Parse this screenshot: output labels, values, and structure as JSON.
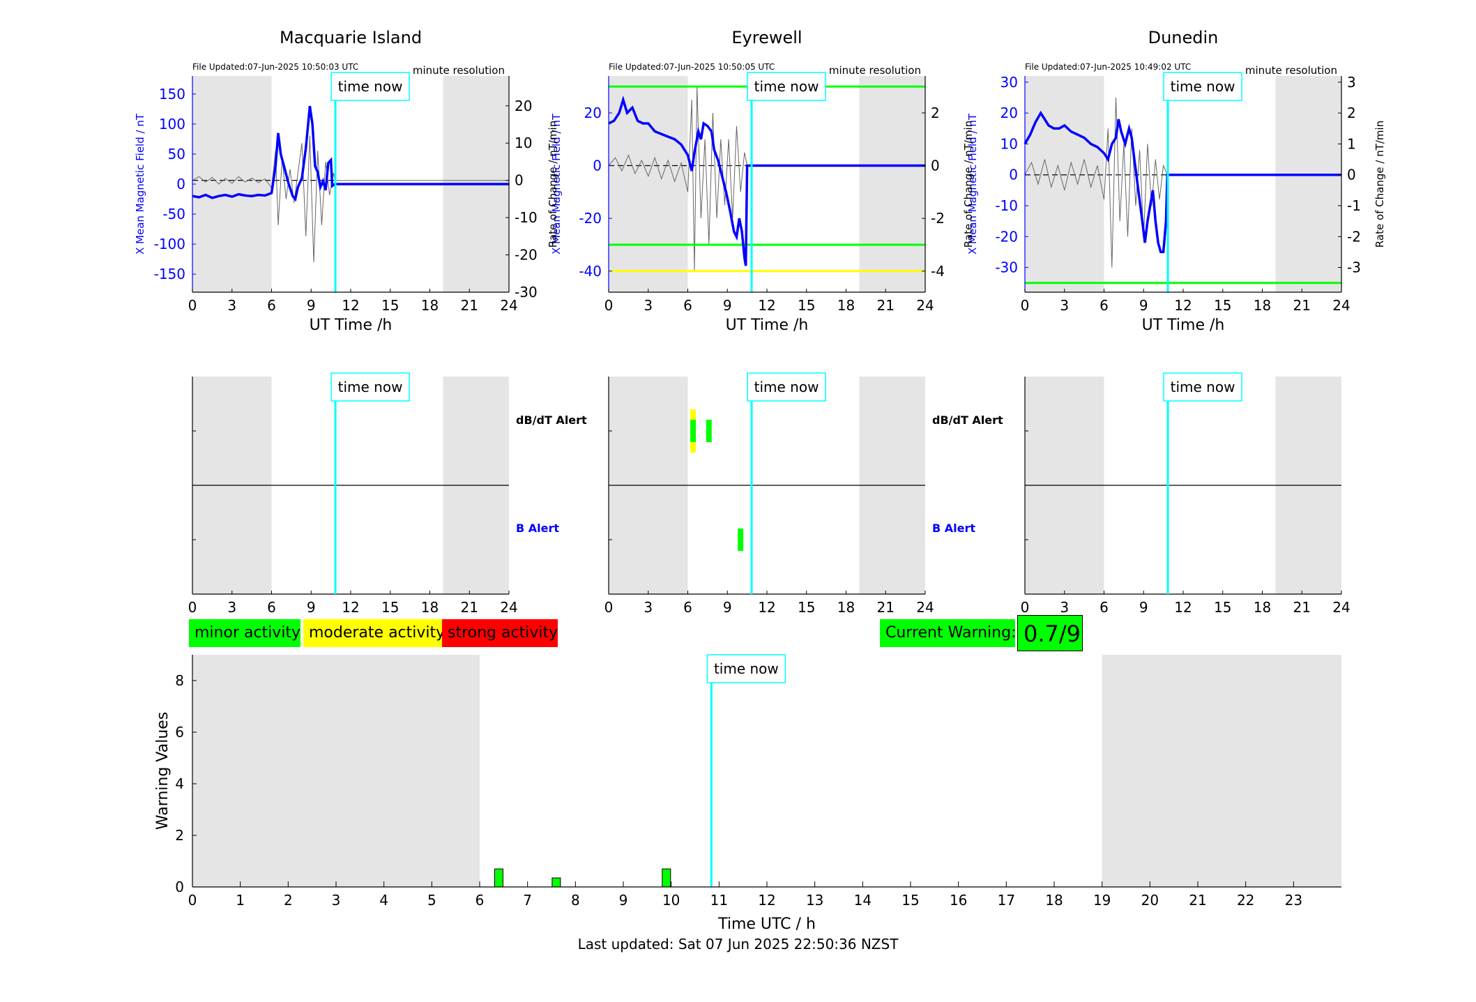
{
  "stations": [
    {
      "title": "Macquarie Island",
      "file_updated": "File Updated:07-Jun-2025 10:50:03 UTC",
      "resolution": "minute resolution",
      "ylabel_left": "X Mean Magnetic Field / nT",
      "ylabel_right": "",
      "left_ylim": [
        -180,
        180
      ],
      "left_ticks": [
        -150,
        -100,
        -50,
        0,
        50,
        100,
        150
      ],
      "right_ylim": [
        -30,
        28
      ],
      "right_ticks": [
        -30,
        -20,
        -10,
        0,
        10,
        20
      ],
      "thresholds": [],
      "thresh_colors": [],
      "x_series": [
        [
          0,
          -20
        ],
        [
          0.5,
          -22
        ],
        [
          1,
          -18
        ],
        [
          1.5,
          -23
        ],
        [
          2,
          -20
        ],
        [
          2.5,
          -18
        ],
        [
          3,
          -21
        ],
        [
          3.5,
          -17
        ],
        [
          4,
          -19
        ],
        [
          4.5,
          -20
        ],
        [
          5,
          -18
        ],
        [
          5.5,
          -19
        ],
        [
          6,
          -15
        ],
        [
          6.3,
          30
        ],
        [
          6.5,
          85
        ],
        [
          6.7,
          50
        ],
        [
          7,
          25
        ],
        [
          7.3,
          0
        ],
        [
          7.6,
          -20
        ],
        [
          7.8,
          -25
        ],
        [
          8,
          -5
        ],
        [
          8.3,
          10
        ],
        [
          8.6,
          60
        ],
        [
          8.9,
          130
        ],
        [
          9.1,
          100
        ],
        [
          9.3,
          30
        ],
        [
          9.5,
          20
        ],
        [
          9.7,
          -5
        ],
        [
          9.9,
          5
        ],
        [
          10.1,
          -10
        ],
        [
          10.3,
          35
        ],
        [
          10.5,
          40
        ],
        [
          10.6,
          -3
        ],
        [
          10.8,
          0
        ],
        [
          24,
          0
        ]
      ],
      "roc_series": [
        [
          0,
          0
        ],
        [
          0.5,
          1
        ],
        [
          1,
          -0.5
        ],
        [
          1.5,
          0.8
        ],
        [
          2,
          -1
        ],
        [
          2.5,
          0.5
        ],
        [
          3,
          -0.8
        ],
        [
          3.5,
          1
        ],
        [
          4,
          -0.5
        ],
        [
          4.5,
          0.6
        ],
        [
          5,
          -0.6
        ],
        [
          5.5,
          0.4
        ],
        [
          6,
          -2
        ],
        [
          6.3,
          8
        ],
        [
          6.5,
          -12
        ],
        [
          6.8,
          6
        ],
        [
          7.1,
          -5
        ],
        [
          7.4,
          3
        ],
        [
          7.7,
          -6
        ],
        [
          8,
          2
        ],
        [
          8.3,
          10
        ],
        [
          8.6,
          -15
        ],
        [
          8.9,
          12
        ],
        [
          9.2,
          -22
        ],
        [
          9.5,
          8
        ],
        [
          9.8,
          -12
        ],
        [
          10.1,
          5
        ],
        [
          10.4,
          -4
        ],
        [
          10.7,
          2
        ],
        [
          10.8,
          0
        ],
        [
          24,
          0
        ]
      ],
      "b_alerts": [],
      "dbdt_alerts": []
    },
    {
      "title": "Eyrewell",
      "file_updated": "File Updated:07-Jun-2025 10:50:05 UTC",
      "resolution": "minute resolution",
      "ylabel_left": "X Mean Magnetic Field / nT",
      "ylabel_right": "Rate of Change / nT/min",
      "left_ylim": [
        -48,
        34
      ],
      "left_ticks": [
        -40,
        -20,
        0,
        20
      ],
      "right_ylim": [
        -4.8,
        3.4
      ],
      "right_ticks": [
        -4,
        -2,
        0,
        2
      ],
      "thresholds": [
        30,
        -30,
        -40
      ],
      "thresh_colors": [
        "#00ff00",
        "#00ff00",
        "#ffff00"
      ],
      "x_series": [
        [
          0,
          16
        ],
        [
          0.4,
          17
        ],
        [
          0.8,
          20
        ],
        [
          1.1,
          25
        ],
        [
          1.4,
          20
        ],
        [
          1.8,
          22
        ],
        [
          2.2,
          17
        ],
        [
          2.6,
          16
        ],
        [
          3,
          16
        ],
        [
          3.5,
          13
        ],
        [
          4,
          12
        ],
        [
          4.5,
          11
        ],
        [
          5,
          10
        ],
        [
          5.5,
          8
        ],
        [
          6,
          4
        ],
        [
          6.3,
          -2
        ],
        [
          6.5,
          5
        ],
        [
          6.8,
          13
        ],
        [
          7,
          10
        ],
        [
          7.2,
          16
        ],
        [
          7.5,
          15
        ],
        [
          7.8,
          13
        ],
        [
          8,
          6
        ],
        [
          8.3,
          2
        ],
        [
          8.6,
          -4
        ],
        [
          8.9,
          -10
        ],
        [
          9.2,
          -17
        ],
        [
          9.5,
          -25
        ],
        [
          9.7,
          -27
        ],
        [
          9.9,
          -20
        ],
        [
          10.1,
          -25
        ],
        [
          10.3,
          -35
        ],
        [
          10.4,
          -38
        ],
        [
          10.5,
          0
        ],
        [
          24,
          0
        ]
      ],
      "roc_series": [
        [
          0,
          0
        ],
        [
          0.5,
          0.3
        ],
        [
          1,
          -0.2
        ],
        [
          1.5,
          0.4
        ],
        [
          2,
          -0.3
        ],
        [
          2.5,
          0.2
        ],
        [
          3,
          -0.4
        ],
        [
          3.5,
          0.3
        ],
        [
          4,
          -0.5
        ],
        [
          4.5,
          0.2
        ],
        [
          5,
          -0.6
        ],
        [
          5.5,
          0.1
        ],
        [
          6,
          -1
        ],
        [
          6.3,
          2.5
        ],
        [
          6.5,
          -4
        ],
        [
          6.7,
          3
        ],
        [
          7,
          -2
        ],
        [
          7.3,
          1
        ],
        [
          7.6,
          -3
        ],
        [
          7.9,
          2
        ],
        [
          8.2,
          -2
        ],
        [
          8.5,
          1
        ],
        [
          8.8,
          -1.5
        ],
        [
          9.1,
          1
        ],
        [
          9.4,
          -2
        ],
        [
          9.7,
          1.5
        ],
        [
          10,
          -1
        ],
        [
          10.3,
          0.5
        ],
        [
          10.5,
          0
        ],
        [
          24,
          0
        ]
      ],
      "b_alerts": [
        {
          "x": 10,
          "color": "#00ff00"
        }
      ],
      "dbdt_alerts": [
        {
          "x": 6.4,
          "color": "#ffff00",
          "tall": true
        },
        {
          "x": 6.4,
          "color": "#00ff00"
        },
        {
          "x": 7.6,
          "color": "#00ff00"
        }
      ]
    },
    {
      "title": "Dunedin",
      "file_updated": "File Updated:07-Jun-2025 10:49:02 UTC",
      "resolution": "minute resolution",
      "ylabel_left": "X Mean Magnetic Field / nT",
      "ylabel_right": "Rate of Change / nT/min",
      "left_ylim": [
        -38,
        32
      ],
      "left_ticks": [
        -30,
        -20,
        -10,
        0,
        10,
        20,
        30
      ],
      "right_ylim": [
        -3.8,
        3.2
      ],
      "right_ticks": [
        -3,
        -2,
        -1,
        0,
        1,
        2,
        3
      ],
      "thresholds": [
        -35
      ],
      "thresh_colors": [
        "#00ff00"
      ],
      "x_series": [
        [
          0,
          10
        ],
        [
          0.4,
          13
        ],
        [
          0.8,
          17
        ],
        [
          1.2,
          20
        ],
        [
          1.5,
          18
        ],
        [
          1.8,
          16
        ],
        [
          2.2,
          15
        ],
        [
          2.6,
          15
        ],
        [
          3,
          16
        ],
        [
          3.5,
          14
        ],
        [
          4,
          13
        ],
        [
          4.5,
          12
        ],
        [
          5,
          10
        ],
        [
          5.5,
          9
        ],
        [
          6,
          7
        ],
        [
          6.3,
          5
        ],
        [
          6.6,
          10
        ],
        [
          6.9,
          12
        ],
        [
          7.1,
          18
        ],
        [
          7.3,
          14
        ],
        [
          7.6,
          10
        ],
        [
          7.9,
          15
        ],
        [
          8.1,
          12
        ],
        [
          8.3,
          5
        ],
        [
          8.6,
          -5
        ],
        [
          8.9,
          -15
        ],
        [
          9.1,
          -22
        ],
        [
          9.3,
          -15
        ],
        [
          9.5,
          -10
        ],
        [
          9.7,
          -5
        ],
        [
          9.9,
          -15
        ],
        [
          10.1,
          -22
        ],
        [
          10.3,
          -25
        ],
        [
          10.5,
          -25
        ],
        [
          10.7,
          -15
        ],
        [
          10.8,
          0
        ],
        [
          24,
          0
        ]
      ],
      "roc_series": [
        [
          0,
          0
        ],
        [
          0.5,
          0.4
        ],
        [
          1,
          -0.3
        ],
        [
          1.5,
          0.5
        ],
        [
          2,
          -0.4
        ],
        [
          2.5,
          0.3
        ],
        [
          3,
          -0.5
        ],
        [
          3.5,
          0.4
        ],
        [
          4,
          -0.3
        ],
        [
          4.5,
          0.5
        ],
        [
          5,
          -0.4
        ],
        [
          5.5,
          0.3
        ],
        [
          6,
          -0.8
        ],
        [
          6.3,
          1.5
        ],
        [
          6.6,
          -3
        ],
        [
          6.9,
          2.5
        ],
        [
          7.2,
          -1.5
        ],
        [
          7.5,
          1
        ],
        [
          7.8,
          -2
        ],
        [
          8.1,
          1.5
        ],
        [
          8.4,
          -1
        ],
        [
          8.7,
          0.8
        ],
        [
          9,
          -2
        ],
        [
          9.3,
          1
        ],
        [
          9.6,
          -1
        ],
        [
          9.9,
          0.5
        ],
        [
          10.2,
          -0.8
        ],
        [
          10.5,
          0.3
        ],
        [
          10.8,
          0
        ],
        [
          24,
          0
        ]
      ],
      "b_alerts": [],
      "dbdt_alerts": []
    }
  ],
  "common": {
    "x_ticks": [
      0,
      3,
      6,
      9,
      12,
      15,
      18,
      21,
      24
    ],
    "x_label": "UT Time /h",
    "time_now_label": "time now",
    "time_now_hours": 10.84,
    "night_spans": [
      [
        0,
        6
      ],
      [
        19,
        24
      ]
    ],
    "dbdt_label": "dB/dT Alert",
    "b_label": "B Alert",
    "rate_ylabel": "Rate of Change / nT/min"
  },
  "legend": {
    "minor": "minor activity",
    "moderate": "moderate activity",
    "strong": "strong activity",
    "current_warning_label": "Current Warning:",
    "current_warning_value": "0.7/9"
  },
  "chart_data": {
    "type": "bar",
    "title": "",
    "xlabel": "Time UTC / h",
    "ylabel": "Warning Values",
    "xlim": [
      0,
      24
    ],
    "ylim": [
      0,
      9
    ],
    "x_ticks": [
      0,
      1,
      2,
      3,
      4,
      5,
      6,
      7,
      8,
      9,
      10,
      11,
      12,
      13,
      14,
      15,
      16,
      17,
      18,
      19,
      20,
      21,
      22,
      23
    ],
    "y_ticks": [
      0,
      2,
      4,
      6,
      8
    ],
    "x": [
      6.4,
      7.6,
      9.9
    ],
    "values": [
      0.7,
      0.35,
      0.7
    ],
    "bar_color": "#00ff00",
    "night_spans": [
      [
        0,
        6
      ],
      [
        19,
        24
      ]
    ],
    "time_now_hours": 10.84
  },
  "footer": "Last updated: Sat 07 Jun 2025 22:50:36 NZST",
  "colors": {
    "blue": "#0000ff",
    "cyan": "#00ffff",
    "night": "#e5e5e5",
    "minor": "#00ff00",
    "moderate": "#ffff00",
    "strong": "#ff0000"
  }
}
